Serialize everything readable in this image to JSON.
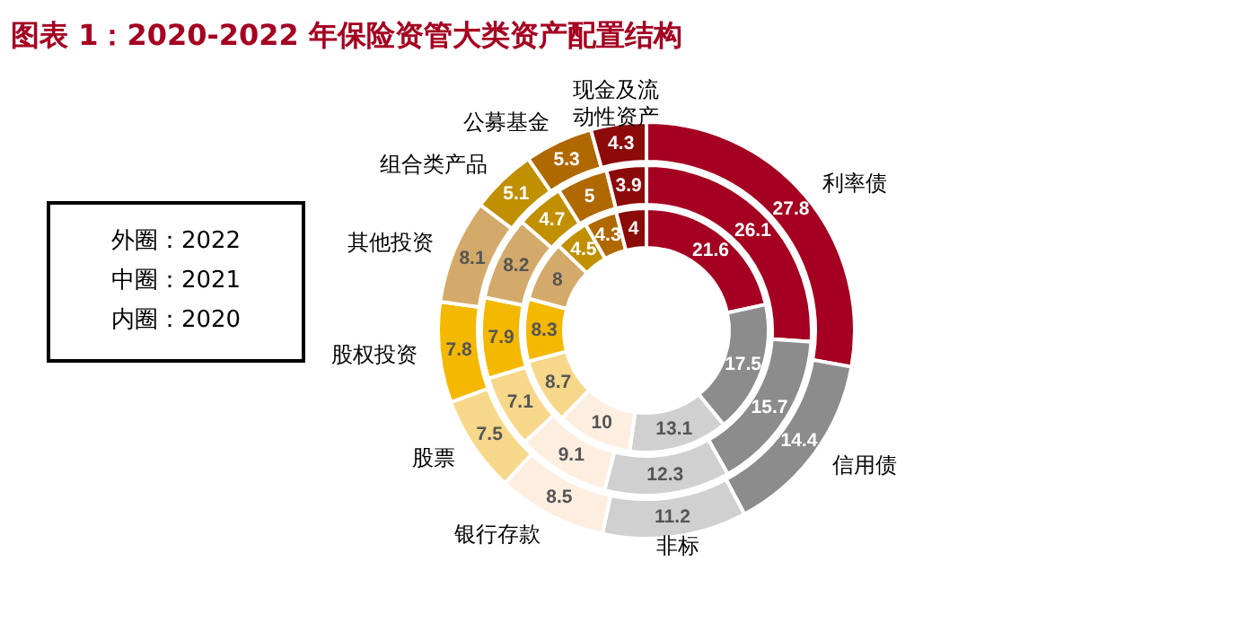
{
  "chart_data": {
    "type": "donut",
    "title": "图表 1：2020-2022 年保险资管大类资产配置结构",
    "categories": [
      "利率债",
      "信用债",
      "非标",
      "银行存款",
      "股票",
      "股权投资",
      "其他投资",
      "组合类产品",
      "公募基金",
      "现金及流动性资产"
    ],
    "colors": [
      "#a50021",
      "#8c8c8c",
      "#d0d0d0",
      "#fdeee0",
      "#f7d88a",
      "#f5b800",
      "#d4aa6a",
      "#c09000",
      "#b06800",
      "#8c0a0a"
    ],
    "series": [
      {
        "values": [
          27.8,
          14.4,
          11.2,
          8.5,
          7.5,
          7.8,
          8.1,
          5.1,
          5.3,
          4.3
        ]
      },
      {
        "values": [
          26.1,
          15.7,
          12.3,
          9.1,
          7.1,
          7.9,
          8.2,
          4.7,
          5,
          3.9
        ]
      },
      {
        "values": [
          21.6,
          17.5,
          13.1,
          10,
          8.7,
          8.3,
          8,
          4.5,
          4.3,
          4
        ]
      }
    ],
    "data_labels": true,
    "annotations": [
      "外圈：2022",
      "中圈：2021",
      "内圈：2020"
    ]
  }
}
